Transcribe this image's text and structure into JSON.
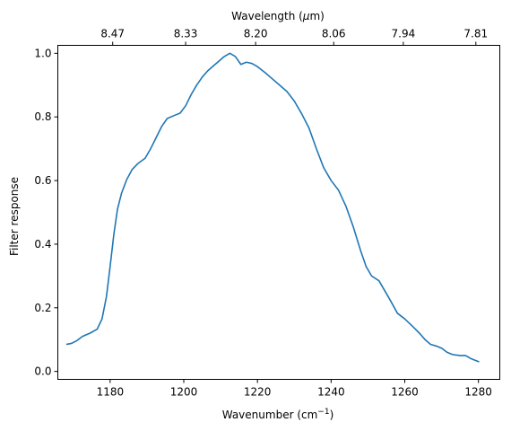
{
  "chart_data": {
    "type": "line",
    "xlabel": "Wavenumber (cm",
    "xlabel_sup": "−1",
    "xlabel_tail": ")",
    "ylabel": "Filter response",
    "top_xlabel": "Wavelength (",
    "top_xlabel_mu": "μ",
    "top_xlabel_tail": "m)",
    "xlim": [
      1165.8,
      1285.8
    ],
    "ylim": [
      -0.025,
      1.025
    ],
    "xticks": [
      1180,
      1200,
      1220,
      1240,
      1260,
      1280
    ],
    "yticks": [
      0.0,
      0.2,
      0.4,
      0.6,
      0.8,
      1.0
    ],
    "top_xticks": [
      {
        "wavenumber": 1180.7,
        "label": "8.47"
      },
      {
        "wavenumber": 1200.5,
        "label": "8.33"
      },
      {
        "wavenumber": 1219.5,
        "label": "8.20"
      },
      {
        "wavenumber": 1240.7,
        "label": "8.06"
      },
      {
        "wavenumber": 1259.6,
        "label": "7.94"
      },
      {
        "wavenumber": 1279.3,
        "label": "7.81"
      }
    ],
    "grid": false,
    "series": [
      {
        "color": "#1f77b4",
        "x": [
          1168.1,
          1169.5,
          1171.0,
          1172.5,
          1174.5,
          1176.5,
          1177.8,
          1179.0,
          1180.0,
          1181.0,
          1182.0,
          1183.1,
          1184.5,
          1186.0,
          1187.5,
          1189.5,
          1191.0,
          1192.5,
          1194.0,
          1195.5,
          1197.5,
          1199.0,
          1200.5,
          1202.0,
          1203.5,
          1205.0,
          1206.5,
          1208.0,
          1209.5,
          1211.0,
          1212.5,
          1214.0,
          1215.5,
          1217.0,
          1218.5,
          1220.0,
          1222.0,
          1224.0,
          1226.0,
          1228.0,
          1230.0,
          1232.0,
          1234.0,
          1236.0,
          1238.0,
          1240.0,
          1242.0,
          1244.0,
          1246.0,
          1248.0,
          1249.5,
          1251.0,
          1253.0,
          1254.5,
          1256.0,
          1258.0,
          1260.0,
          1262.0,
          1264.0,
          1265.5,
          1267.0,
          1268.5,
          1270.0,
          1271.5,
          1273.0,
          1275.0,
          1276.5,
          1278.0,
          1280.2
        ],
        "y": [
          0.085,
          0.088,
          0.097,
          0.11,
          0.12,
          0.133,
          0.165,
          0.235,
          0.33,
          0.43,
          0.51,
          0.56,
          0.603,
          0.635,
          0.653,
          0.67,
          0.7,
          0.735,
          0.77,
          0.795,
          0.805,
          0.812,
          0.835,
          0.87,
          0.9,
          0.925,
          0.945,
          0.96,
          0.975,
          0.99,
          1.0,
          0.99,
          0.965,
          0.972,
          0.968,
          0.958,
          0.94,
          0.92,
          0.9,
          0.88,
          0.85,
          0.81,
          0.765,
          0.7,
          0.64,
          0.6,
          0.57,
          0.52,
          0.455,
          0.38,
          0.33,
          0.3,
          0.285,
          0.255,
          0.225,
          0.183,
          0.165,
          0.143,
          0.12,
          0.1,
          0.085,
          0.08,
          0.073,
          0.06,
          0.053,
          0.05,
          0.05,
          0.04,
          0.03
        ]
      }
    ]
  }
}
